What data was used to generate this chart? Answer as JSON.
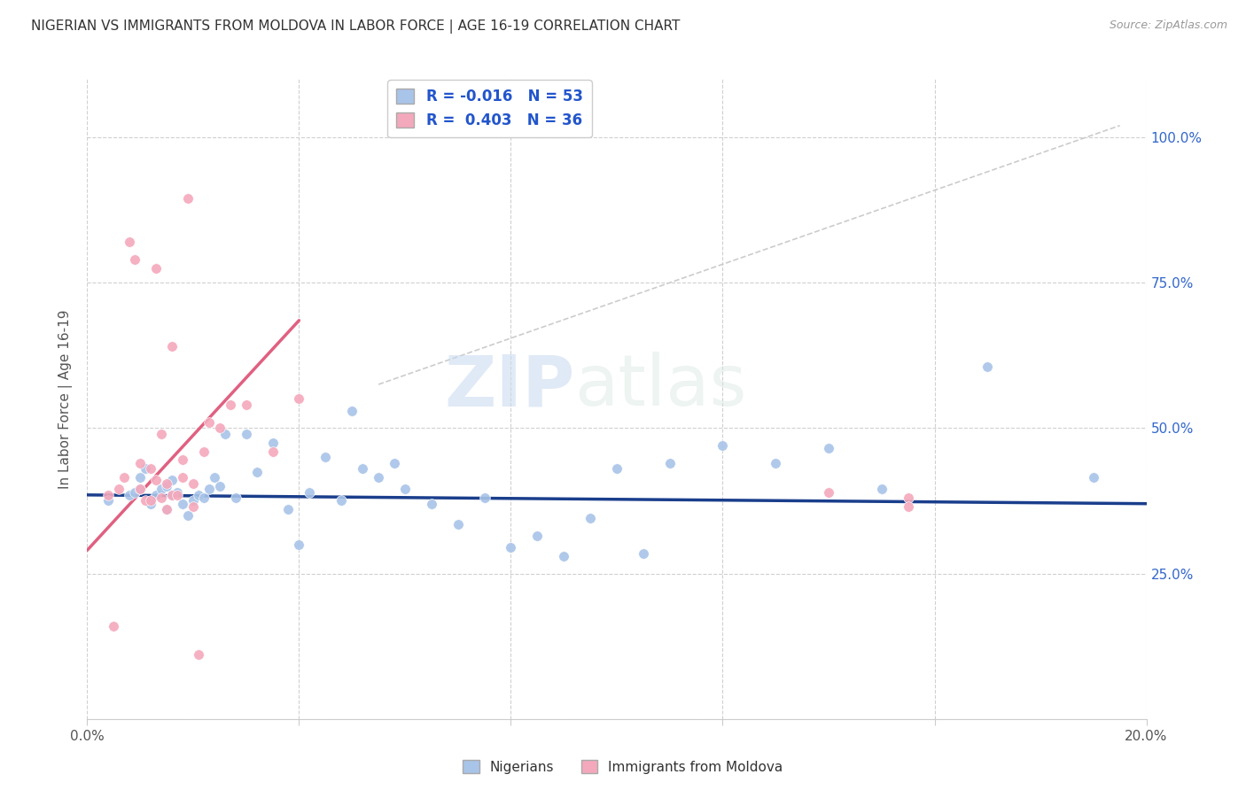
{
  "title": "NIGERIAN VS IMMIGRANTS FROM MOLDOVA IN LABOR FORCE | AGE 16-19 CORRELATION CHART",
  "source": "Source: ZipAtlas.com",
  "ylabel": "In Labor Force | Age 16-19",
  "xlim": [
    0.0,
    0.2
  ],
  "ylim": [
    0.0,
    1.1
  ],
  "ytick_values": [
    0.0,
    0.25,
    0.5,
    0.75,
    1.0
  ],
  "xtick_values": [
    0.0,
    0.04,
    0.08,
    0.12,
    0.16,
    0.2
  ],
  "blue_R": "-0.016",
  "blue_N": "53",
  "pink_R": "0.403",
  "pink_N": "36",
  "blue_color": "#a8c4e8",
  "pink_color": "#f4a8bc",
  "blue_line_color": "#1a3e8c",
  "pink_line_color": "#e06080",
  "diag_line_color": "#cccccc",
  "watermark_zip": "ZIP",
  "watermark_atlas": "atlas",
  "blue_scatter_x": [
    0.004,
    0.008,
    0.009,
    0.01,
    0.01,
    0.011,
    0.012,
    0.013,
    0.014,
    0.015,
    0.015,
    0.016,
    0.016,
    0.017,
    0.018,
    0.019,
    0.02,
    0.021,
    0.022,
    0.023,
    0.024,
    0.025,
    0.026,
    0.028,
    0.03,
    0.032,
    0.035,
    0.038,
    0.04,
    0.042,
    0.045,
    0.048,
    0.05,
    0.052,
    0.055,
    0.058,
    0.06,
    0.065,
    0.07,
    0.075,
    0.08,
    0.085,
    0.09,
    0.095,
    0.1,
    0.105,
    0.11,
    0.12,
    0.13,
    0.14,
    0.15,
    0.17,
    0.19
  ],
  "blue_scatter_y": [
    0.375,
    0.385,
    0.39,
    0.395,
    0.415,
    0.43,
    0.37,
    0.385,
    0.395,
    0.4,
    0.36,
    0.385,
    0.41,
    0.39,
    0.37,
    0.35,
    0.375,
    0.385,
    0.38,
    0.395,
    0.415,
    0.4,
    0.49,
    0.38,
    0.49,
    0.425,
    0.475,
    0.36,
    0.3,
    0.39,
    0.45,
    0.375,
    0.53,
    0.43,
    0.415,
    0.44,
    0.395,
    0.37,
    0.335,
    0.38,
    0.295,
    0.315,
    0.28,
    0.345,
    0.43,
    0.285,
    0.44,
    0.47,
    0.44,
    0.465,
    0.395,
    0.605,
    0.415
  ],
  "pink_scatter_x": [
    0.004,
    0.005,
    0.006,
    0.007,
    0.008,
    0.009,
    0.01,
    0.01,
    0.011,
    0.012,
    0.012,
    0.013,
    0.013,
    0.014,
    0.014,
    0.015,
    0.015,
    0.016,
    0.016,
    0.017,
    0.018,
    0.018,
    0.019,
    0.02,
    0.02,
    0.021,
    0.022,
    0.023,
    0.025,
    0.027,
    0.03,
    0.035,
    0.04,
    0.14,
    0.155,
    0.155
  ],
  "pink_scatter_y": [
    0.385,
    0.16,
    0.395,
    0.415,
    0.82,
    0.79,
    0.395,
    0.44,
    0.375,
    0.375,
    0.43,
    0.41,
    0.775,
    0.38,
    0.49,
    0.405,
    0.36,
    0.385,
    0.64,
    0.385,
    0.415,
    0.445,
    0.895,
    0.365,
    0.405,
    0.11,
    0.46,
    0.51,
    0.5,
    0.54,
    0.54,
    0.46,
    0.55,
    0.39,
    0.38,
    0.365
  ],
  "blue_line_x": [
    0.0,
    0.2
  ],
  "blue_line_y": [
    0.385,
    0.37
  ],
  "pink_line_x": [
    0.0,
    0.04
  ],
  "pink_line_y": [
    0.29,
    0.685
  ],
  "diag_line_x": [
    0.055,
    0.195
  ],
  "diag_line_y": [
    0.575,
    1.02
  ]
}
